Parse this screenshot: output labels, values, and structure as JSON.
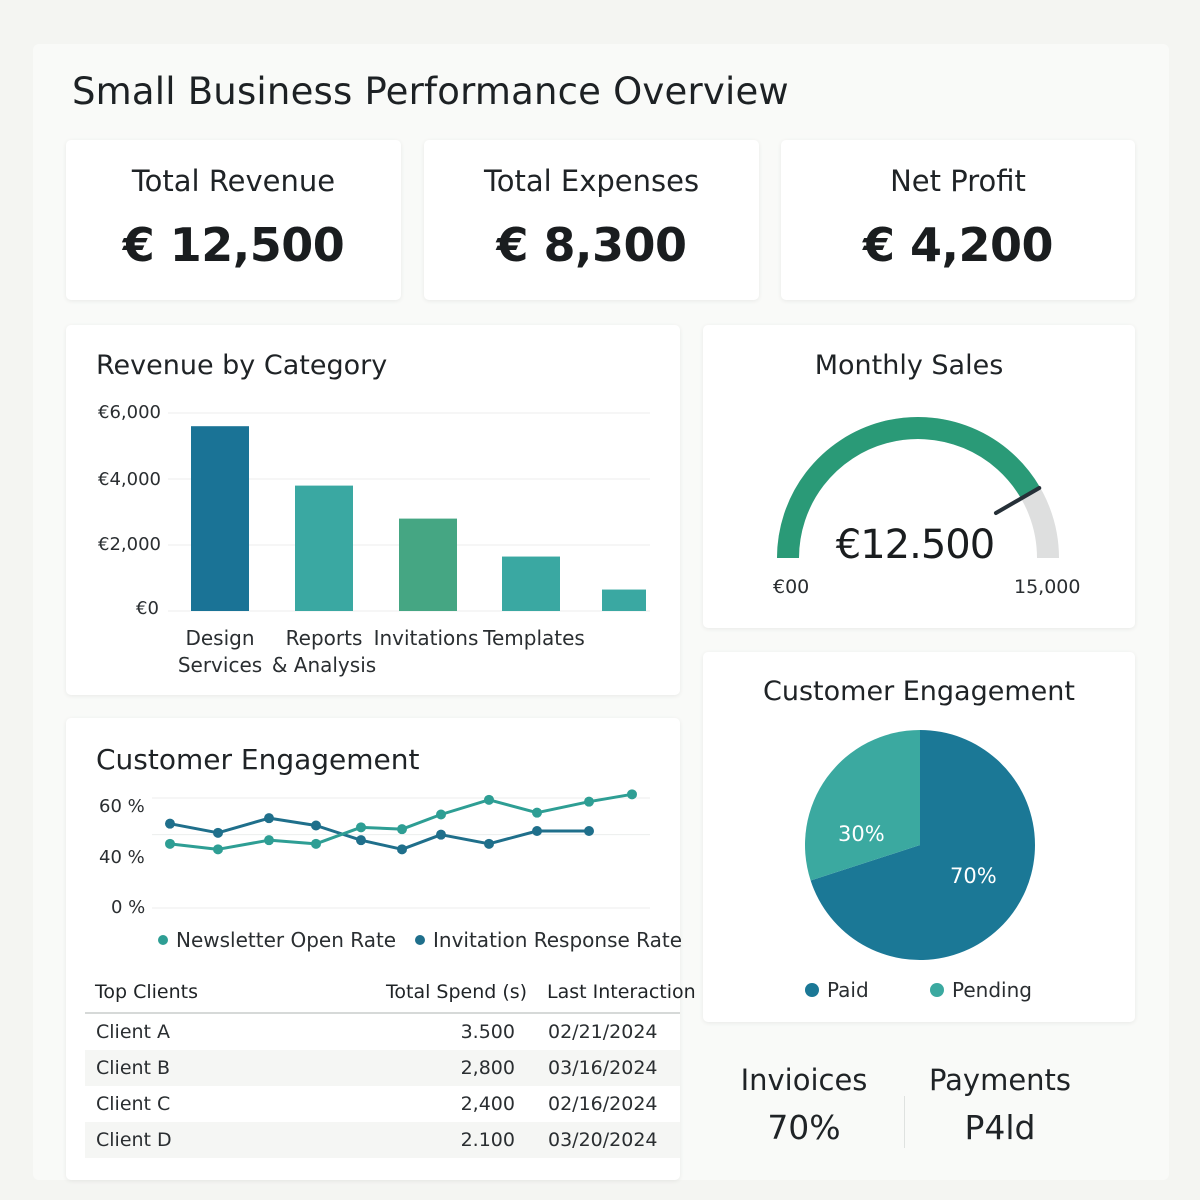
{
  "page": {
    "title": "Small Business Performance Overview"
  },
  "kpis": [
    {
      "title": "Total Revenue",
      "value": "€ 12,500"
    },
    {
      "title": "Total Expenses",
      "value": "€ 8,300"
    },
    {
      "title": "Net Profit",
      "value": "€ 4,200"
    }
  ],
  "revenue_chart": {
    "title": "Revenue by Category",
    "y_ticks": [
      "€6,000",
      "€4,000",
      "€2,000",
      "€0"
    ],
    "categories": [
      {
        "line1": "Design",
        "line2": "Services"
      },
      {
        "line1": "Reports",
        "line2": "& Analysis"
      },
      {
        "line1": "Invitations",
        "line2": ""
      },
      {
        "line1": "Templates",
        "line2": ""
      },
      {
        "line1": "",
        "line2": ""
      }
    ]
  },
  "monthly_sales": {
    "title": "Monthly Sales",
    "value": "€12.500",
    "min_label": "€00",
    "max_label": "15,000"
  },
  "engagement_line": {
    "title": "Customer Engagement",
    "y_ticks": [
      "60 %",
      "40 %",
      "0 %"
    ],
    "legend": [
      {
        "label": "Newsletter Open Rate",
        "color": "#2e9e94"
      },
      {
        "label": "Invitation Response Rate",
        "color": "#1f6f8b"
      }
    ]
  },
  "engagement_pie": {
    "title": "Customer Engagement",
    "slices": [
      {
        "label": "Paid",
        "percent_label": "70%",
        "value": 70,
        "color": "#1b7896"
      },
      {
        "label": "Pending",
        "percent_label": "30%",
        "value": 30,
        "color": "#3ba9a0"
      }
    ]
  },
  "clients_table": {
    "headers": {
      "client": "Top Clients",
      "spend": "Total Spend (s)",
      "last": "Last Interaction"
    },
    "rows": [
      {
        "client": "Client A",
        "spend": "3.500",
        "last": "02/21/2024"
      },
      {
        "client": "Client B",
        "spend": "2,800",
        "last": "03/16/2024"
      },
      {
        "client": "Client C",
        "spend": "2,400",
        "last": "02/16/2024"
      },
      {
        "client": "Client D",
        "spend": "2.100",
        "last": "03/20/2024"
      }
    ]
  },
  "bottom_stats": {
    "invoices": {
      "label": "Invioices",
      "value": "70%"
    },
    "payments": {
      "label": "Payments",
      "value": "P4ld"
    }
  },
  "chart_data": [
    {
      "type": "bar",
      "title": "Revenue by Category",
      "categories": [
        "Design Services",
        "Reports & Analysis",
        "Invitations",
        "Templates",
        ""
      ],
      "values": [
        5600,
        3800,
        2800,
        1650,
        650
      ],
      "colors": [
        "#1a7396",
        "#3aa8a2",
        "#45a683",
        "#3aa8a2",
        "#3aa8a2"
      ],
      "ylabel": "",
      "ylim": [
        0,
        6000
      ]
    },
    {
      "type": "line",
      "title": "Customer Engagement",
      "x": [
        1,
        2,
        3,
        4,
        5,
        6,
        7,
        8,
        9,
        10,
        11
      ],
      "ylim": [
        0,
        60
      ],
      "series": [
        {
          "name": "Invitation Response Rate",
          "values": [
            46,
            41,
            49,
            45,
            37,
            32,
            40,
            35,
            42,
            42,
            null
          ],
          "color": "#1f6f8b"
        },
        {
          "name": "Newsletter Open Rate",
          "values": [
            35,
            32,
            37,
            35,
            44,
            43,
            51,
            59,
            52,
            58,
            62
          ],
          "color": "#2e9e94"
        }
      ]
    },
    {
      "type": "pie",
      "title": "Customer Engagement",
      "labels": [
        "Paid",
        "Pending"
      ],
      "values": [
        70,
        30
      ]
    },
    {
      "type": "gauge",
      "title": "Monthly Sales",
      "value": 12500,
      "min": 0,
      "max": 15000
    }
  ]
}
